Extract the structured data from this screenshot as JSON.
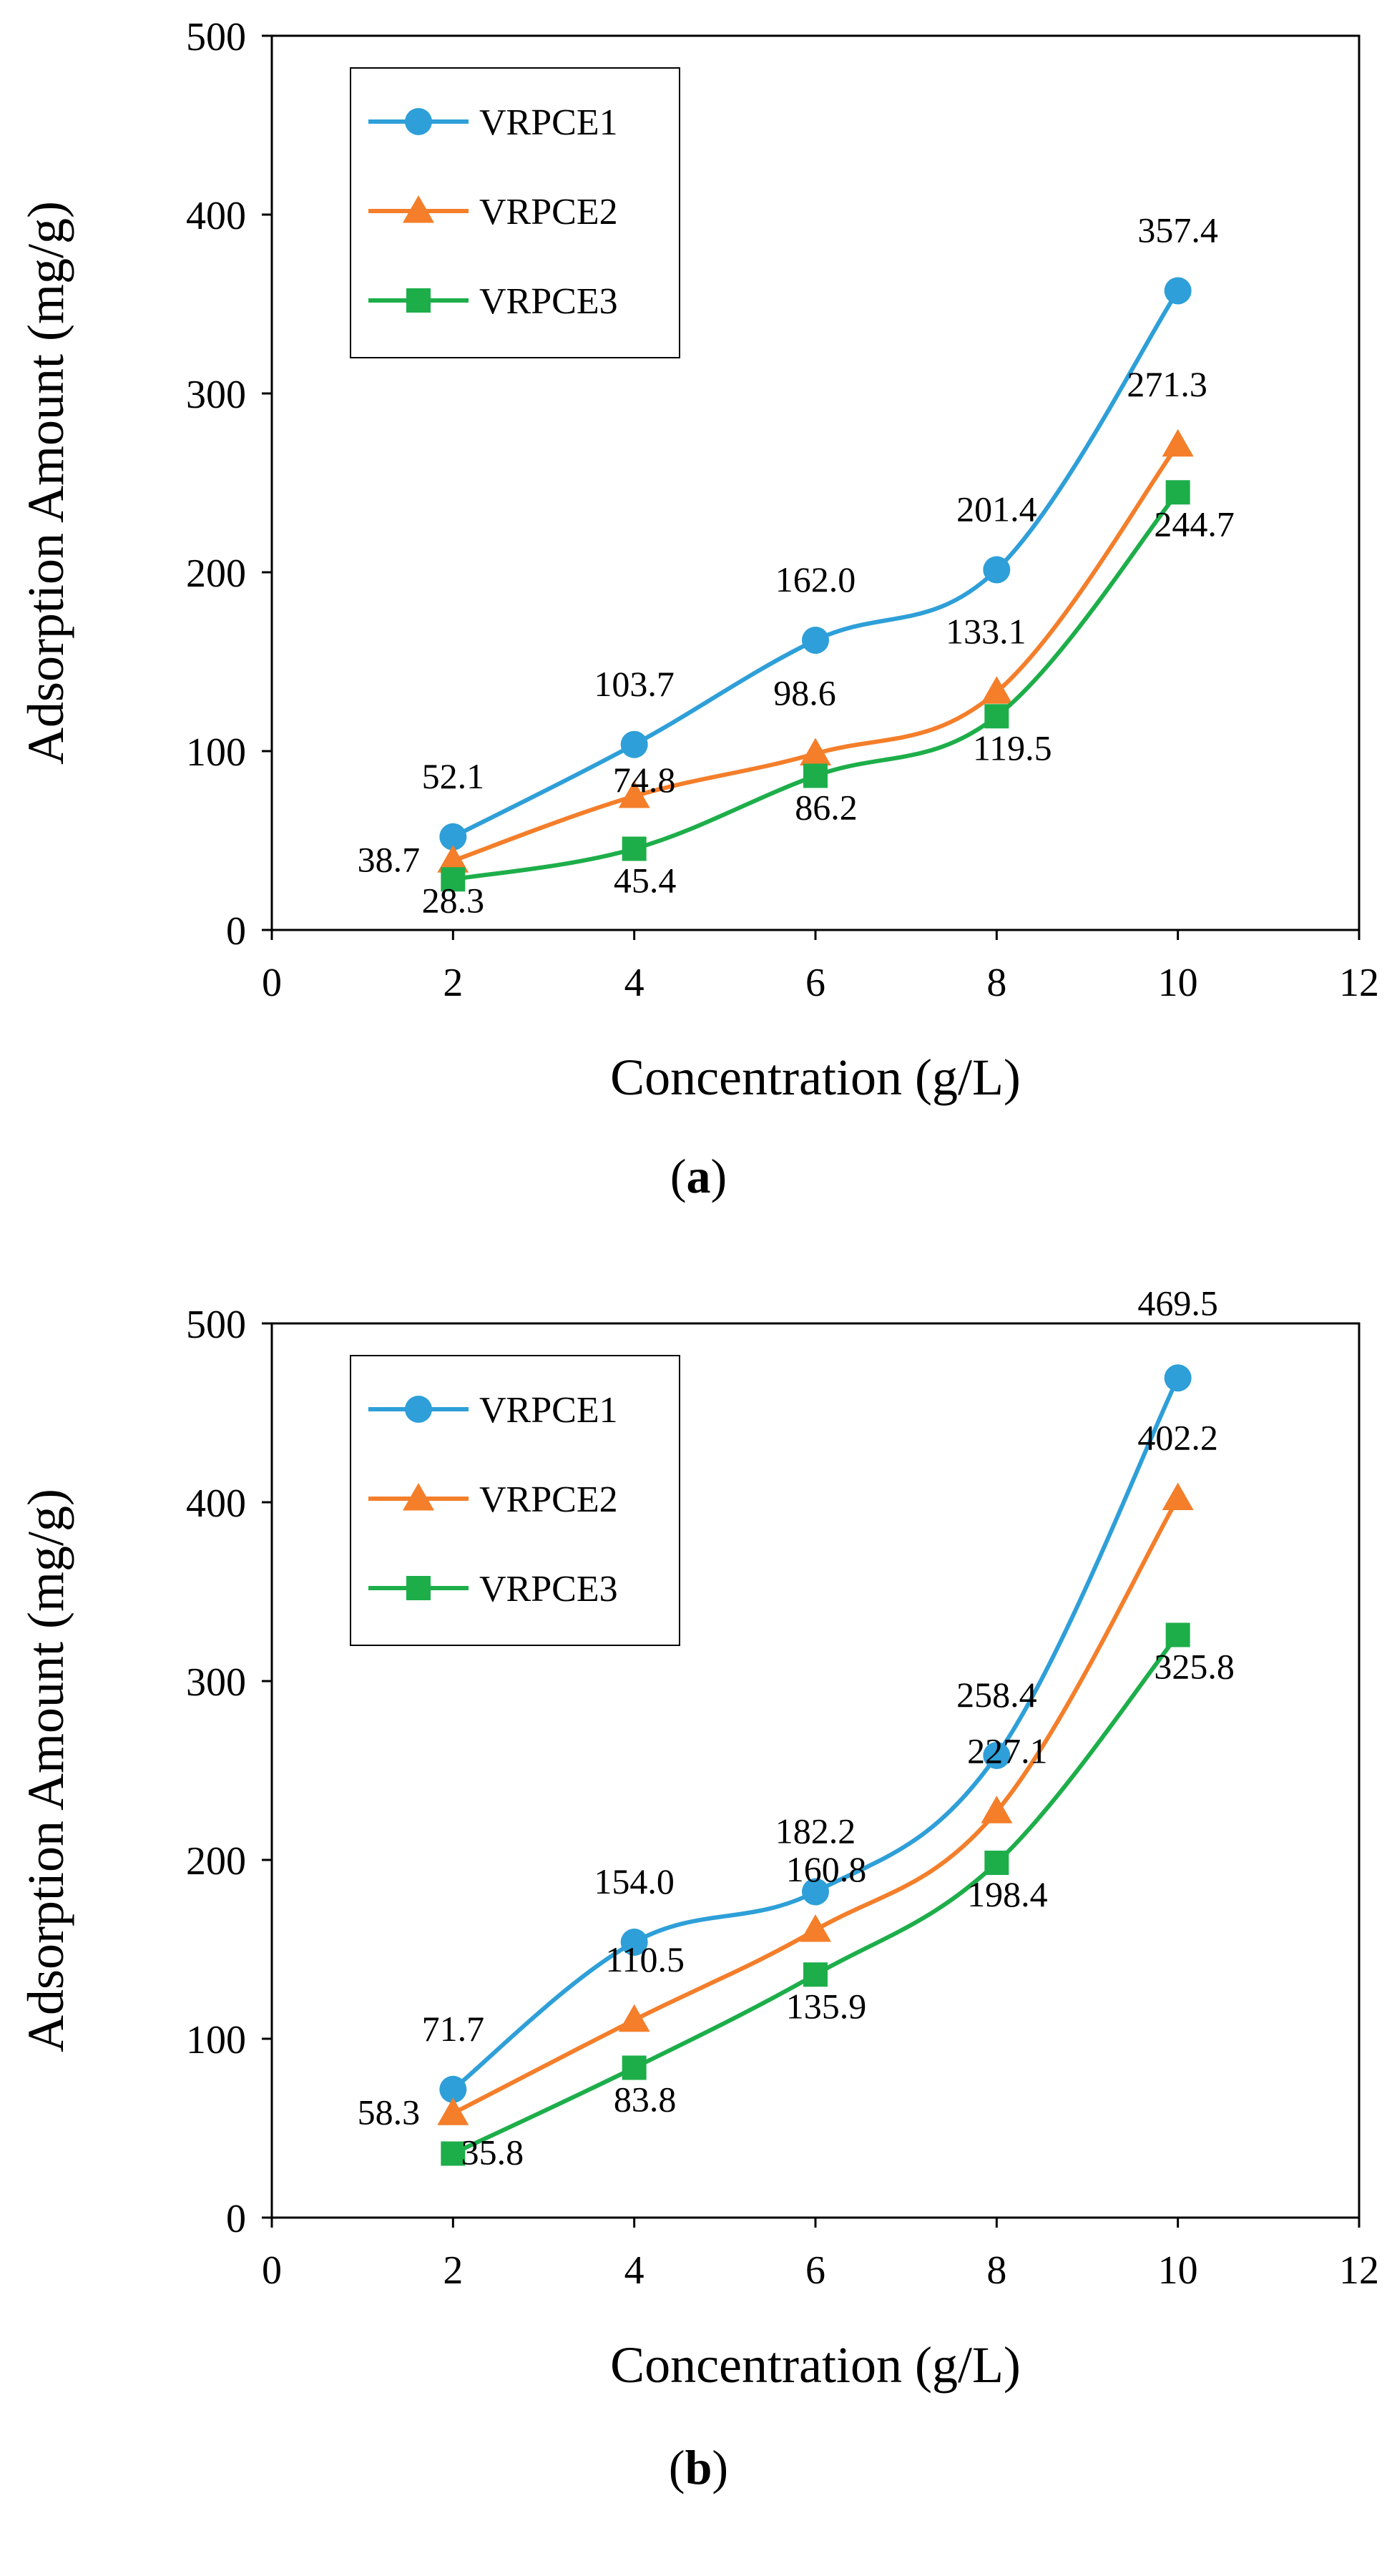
{
  "chart_data": [
    {
      "type": "line",
      "title": "",
      "caption_letter": "a",
      "xlabel": "Concentration (g/L)",
      "ylabel": "Adsorption Amount (mg/g)",
      "xlim": [
        0,
        12
      ],
      "ylim": [
        0,
        500
      ],
      "xticks": [
        0,
        2,
        4,
        6,
        8,
        10,
        12
      ],
      "yticks": [
        0,
        100,
        200,
        300,
        400,
        500
      ],
      "x": [
        2,
        4,
        6,
        8,
        10
      ],
      "grid": false,
      "legend": "top-left",
      "series": [
        {
          "name": "VRPCE1",
          "color": "#2E9FD8",
          "marker": "circle",
          "values": [
            52.1,
            103.7,
            162.0,
            201.4,
            357.4
          ],
          "labels": [
            "52.1",
            "103.7",
            "162.0",
            "201.4",
            "357.4"
          ]
        },
        {
          "name": "VRPCE2",
          "color": "#F47E2A",
          "marker": "triangle",
          "values": [
            38.7,
            74.8,
            98.6,
            133.1,
            271.3
          ],
          "labels": [
            "38.7",
            "74.8",
            "98.6",
            "133.1",
            "271.3"
          ]
        },
        {
          "name": "VRPCE3",
          "color": "#1DAE4A",
          "marker": "square",
          "values": [
            28.3,
            45.4,
            86.2,
            119.5,
            244.7
          ],
          "labels": [
            "28.3",
            "45.4",
            "86.2",
            "119.5",
            "244.7"
          ]
        }
      ]
    },
    {
      "type": "line",
      "title": "",
      "caption_letter": "b",
      "xlabel": "Concentration (g/L)",
      "ylabel": "Adsorption Amount (mg/g)",
      "xlim": [
        0,
        12
      ],
      "ylim": [
        0,
        500
      ],
      "xticks": [
        0,
        2,
        4,
        6,
        8,
        10,
        12
      ],
      "yticks": [
        0,
        100,
        200,
        300,
        400,
        500
      ],
      "x": [
        2,
        4,
        6,
        8,
        10
      ],
      "grid": false,
      "legend": "top-left",
      "series": [
        {
          "name": "VRPCE1",
          "color": "#2E9FD8",
          "marker": "circle",
          "values": [
            71.7,
            154.0,
            182.2,
            258.4,
            469.5
          ],
          "labels": [
            "71.7",
            "154.0",
            "182.2",
            "258.4",
            "469.5"
          ]
        },
        {
          "name": "VRPCE2",
          "color": "#F47E2A",
          "marker": "triangle",
          "values": [
            58.3,
            110.5,
            160.8,
            227.1,
            402.2
          ],
          "labels": [
            "58.3",
            "110.5",
            "160.8",
            "227.1",
            "402.2"
          ]
        },
        {
          "name": "VRPCE3",
          "color": "#1DAE4A",
          "marker": "square",
          "values": [
            35.8,
            83.8,
            135.9,
            198.4,
            325.8
          ],
          "labels": [
            "35.8",
            "83.8",
            "135.9",
            "198.4",
            "325.8"
          ]
        }
      ]
    }
  ]
}
